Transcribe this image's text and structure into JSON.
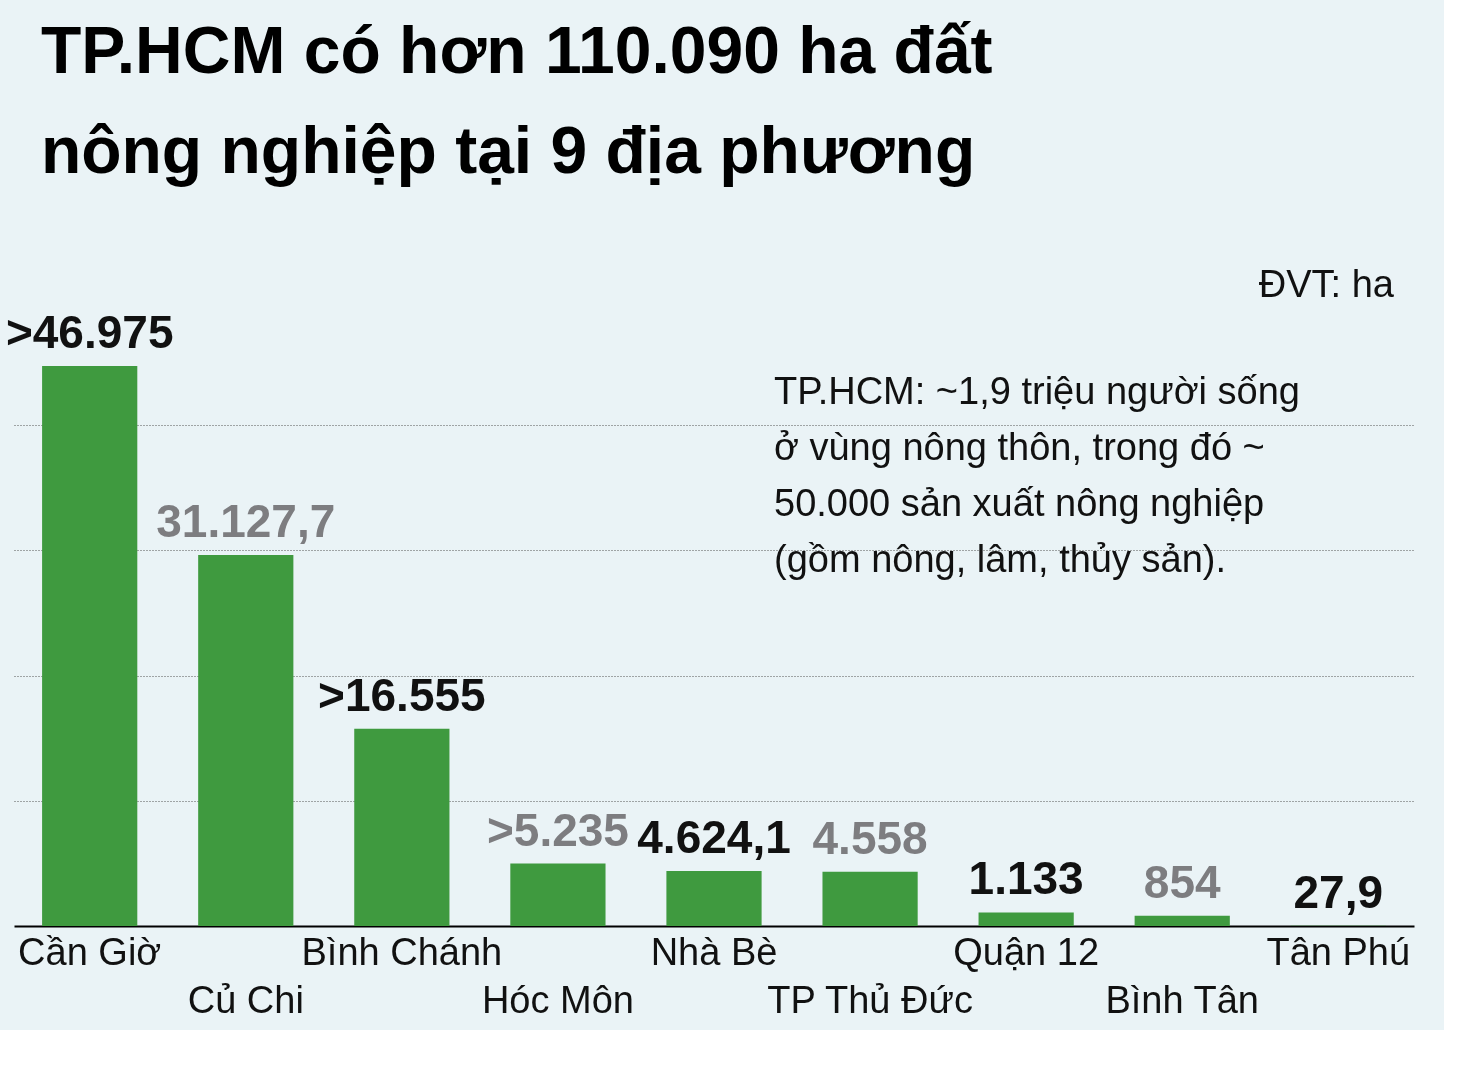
{
  "chart_data": {
    "type": "bar",
    "title": "TP.HCM có hơn 110.090 ha đất\nnông nghiệp tại 9 địa phương",
    "categories": [
      "Cần Giờ",
      "Củ Chi",
      "Bình Chánh",
      "Hóc Môn",
      "Nhà Bè",
      "TP Thủ Đức",
      "Quận 12",
      "Bình Tân",
      "Tân Phú"
    ],
    "values": [
      46975,
      31127.7,
      16555,
      5235,
      4624.1,
      4558,
      1133,
      854,
      27.9
    ],
    "value_labels": [
      ">46.975",
      "31.127,7",
      ">16.555",
      ">5.235",
      "4.624,1",
      "4.558",
      "1.133",
      "854",
      "27,9"
    ],
    "color": "#3f9a3f",
    "yticks": [
      {
        "value": 10500,
        "label": null
      },
      {
        "value": 21000,
        "label": null
      },
      {
        "value": 31500,
        "label": null
      },
      {
        "value": 42000,
        "label": null
      }
    ],
    "grid": "y",
    "tick_labels": "x",
    "annotations": [
      "ĐVT: ha",
      "TP.HCM: ~1,9 triệu người sống ở vùng nông thôn, trong đó ~ 50.000 sản xuất nông nghiệp (gồm nông, lâm, thủy sản)."
    ]
  }
}
